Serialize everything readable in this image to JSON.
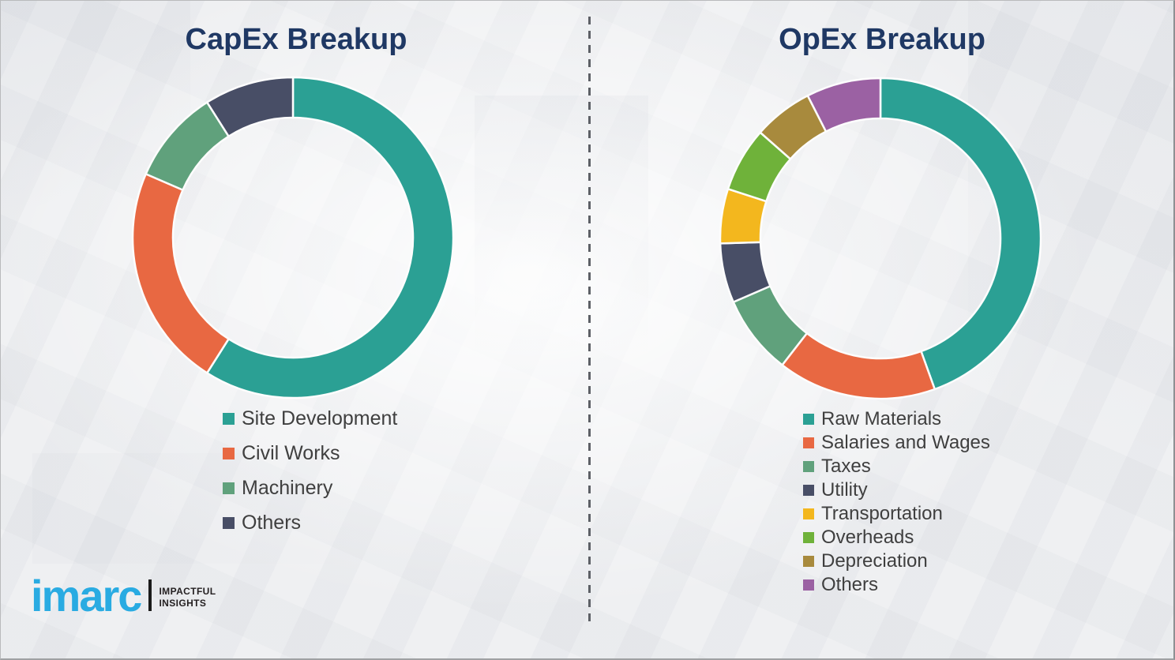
{
  "chart_data": [
    {
      "type": "pie",
      "subtype": "donut",
      "title": "CapEx Breakup",
      "title_color": "#1f3864",
      "categories": [
        "Site Development",
        "Civil Works",
        "Machinery",
        "Others"
      ],
      "values": [
        59,
        22.5,
        9.5,
        9
      ],
      "colors": [
        "#2ba094",
        "#e86842",
        "#60a17c",
        "#484e66"
      ],
      "start_angle_deg": 0,
      "clockwise": true,
      "data_labels_shown": false,
      "legend_position": "below-left",
      "legend_text_color": "#3f3f3f"
    },
    {
      "type": "pie",
      "subtype": "donut",
      "title": "OpEx Breakup",
      "title_color": "#1f3864",
      "categories": [
        "Raw Materials",
        "Salaries and Wages",
        "Taxes",
        "Utility",
        "Transportation",
        "Overheads",
        "Depreciation",
        "Others"
      ],
      "values": [
        44.5,
        16,
        8,
        6,
        5.5,
        6.5,
        6,
        7.5
      ],
      "colors": [
        "#2ba094",
        "#e86842",
        "#60a17c",
        "#484e66",
        "#f3b71e",
        "#6fb23a",
        "#a88a3d",
        "#9b61a3"
      ],
      "start_angle_deg": 0,
      "clockwise": true,
      "data_labels_shown": false,
      "legend_position": "below-left",
      "legend_text_color": "#3f3f3f"
    }
  ],
  "logo": {
    "brand": "imarc",
    "brand_color": "#29abe2",
    "tagline": "IMPACTFUL\nINSIGHTS"
  }
}
